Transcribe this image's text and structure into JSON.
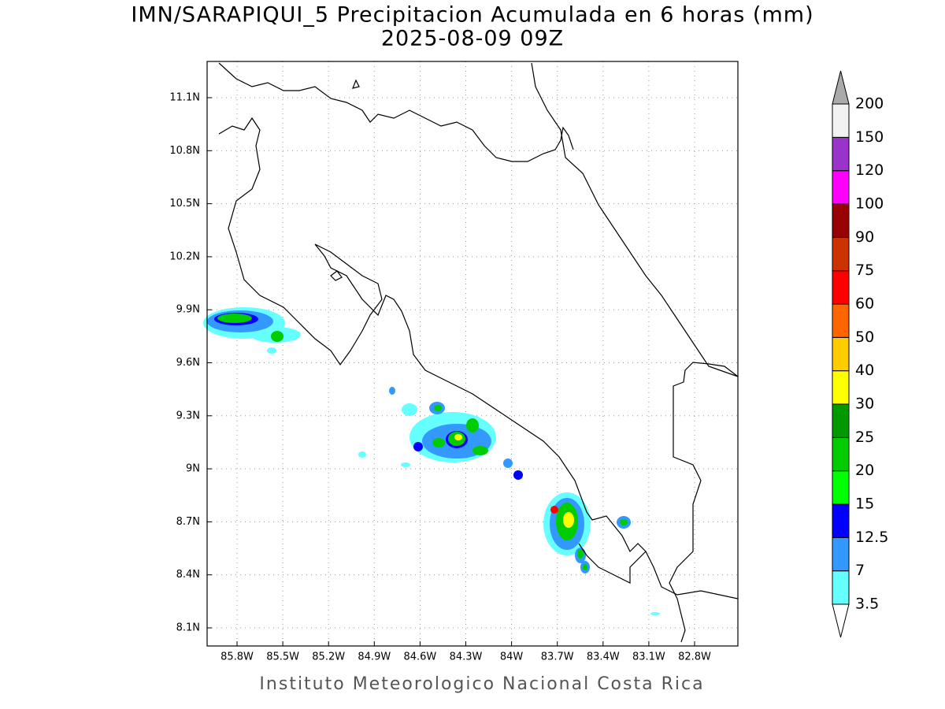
{
  "title": "IMN/SARAPIQUI_5 Precipitacion Acumulada en 6 horas (mm)",
  "subtitle": "2025-08-09 09Z",
  "footer": "Instituto Meteorologico Nacional Costa Rica",
  "map": {
    "lon_ticks": [
      {
        "value": -85.8,
        "label": "85.8W"
      },
      {
        "value": -85.5,
        "label": "85.5W"
      },
      {
        "value": -85.2,
        "label": "85.2W"
      },
      {
        "value": -84.9,
        "label": "84.9W"
      },
      {
        "value": -84.6,
        "label": "84.6W"
      },
      {
        "value": -84.3,
        "label": "84.3W"
      },
      {
        "value": -84,
        "label": "84W"
      },
      {
        "value": -83.7,
        "label": "83.7W"
      },
      {
        "value": -83.4,
        "label": "83.4W"
      },
      {
        "value": -83.1,
        "label": "83.1W"
      },
      {
        "value": -82.8,
        "label": "82.8W"
      }
    ],
    "lat_ticks": [
      {
        "value": 11.1,
        "label": "11.1N"
      },
      {
        "value": 10.8,
        "label": "10.8N"
      },
      {
        "value": 10.5,
        "label": "10.5N"
      },
      {
        "value": 10.2,
        "label": "10.2N"
      },
      {
        "value": 9.9,
        "label": "9.9N"
      },
      {
        "value": 9.6,
        "label": "9.6N"
      },
      {
        "value": 9.3,
        "label": "9.3N"
      },
      {
        "value": 9,
        "label": "9N"
      },
      {
        "value": 8.7,
        "label": "8.7N"
      },
      {
        "value": 8.4,
        "label": "8.4N"
      },
      {
        "value": 8.1,
        "label": "8.1N"
      }
    ],
    "grid": true
  },
  "colorbar": {
    "levels": [
      3.5,
      7,
      12.5,
      15,
      20,
      25,
      30,
      40,
      50,
      60,
      75,
      90,
      100,
      120,
      150,
      200
    ],
    "colors": [
      "#66ffff",
      "#3399ff",
      "#0000ff",
      "#00ff00",
      "#00cc00",
      "#009900",
      "#ffff00",
      "#ffcc00",
      "#ff6600",
      "#ff0000",
      "#cc3300",
      "#990000",
      "#ff00ff",
      "#9933cc",
      "#f2f2f2"
    ],
    "under_color": "#ffffff",
    "over_color": "#aaaaaa"
  }
}
